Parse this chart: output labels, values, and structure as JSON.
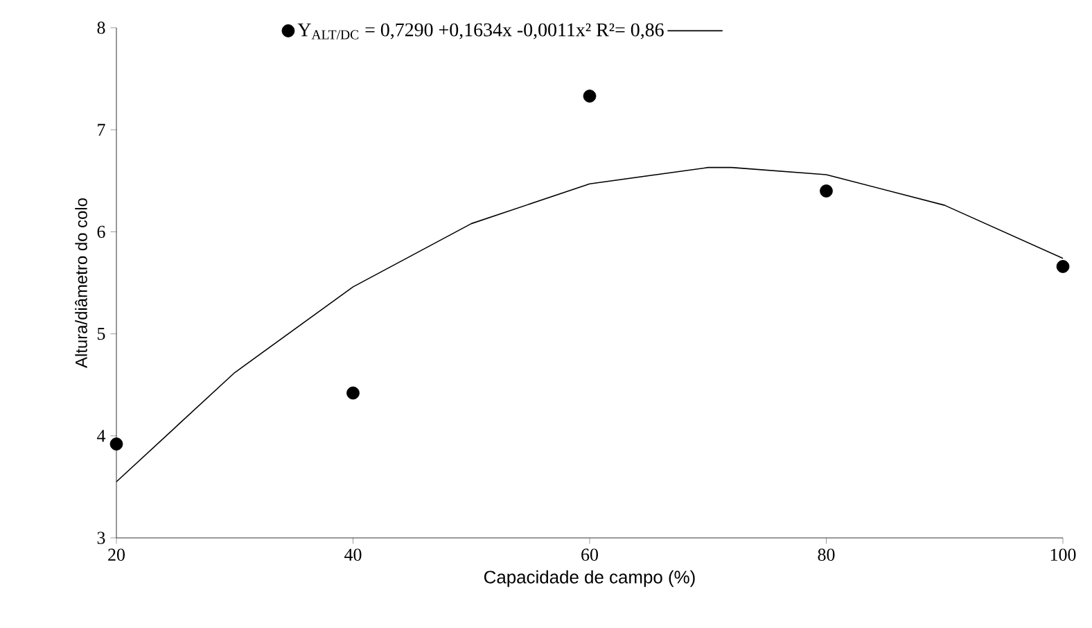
{
  "chart_data": {
    "type": "scatter",
    "xlabel": "Capacidade de campo (%)",
    "ylabel": "Altura/diâmetro do colo",
    "xlim": [
      20,
      100
    ],
    "ylim": [
      3,
      8
    ],
    "xticks": [
      20,
      40,
      60,
      80,
      100
    ],
    "yticks": [
      3,
      4,
      5,
      6,
      7,
      8
    ],
    "x": [
      20,
      40,
      60,
      80,
      100
    ],
    "legend": "top left",
    "grid": false,
    "marker": "circle",
    "series": [
      {
        "name": "Y$_{ALT/DC}$ = 0,7290   +0,1634x   -0,0011x²    R²= 0,86",
        "color": "#000000",
        "values": [
          3.92,
          4.42,
          7.33,
          6.4,
          5.66
        ]
      },
      {
        "type": "line",
        "color": "#000000",
        "line_style": "solid",
        "marker": "none",
        "x": [
          20,
          30,
          40,
          50,
          60,
          70,
          72,
          80,
          90,
          100
        ],
        "values": [
          3.55,
          4.62,
          5.46,
          6.08,
          6.47,
          6.63,
          6.63,
          6.56,
          6.26,
          5.74
        ]
      }
    ]
  }
}
